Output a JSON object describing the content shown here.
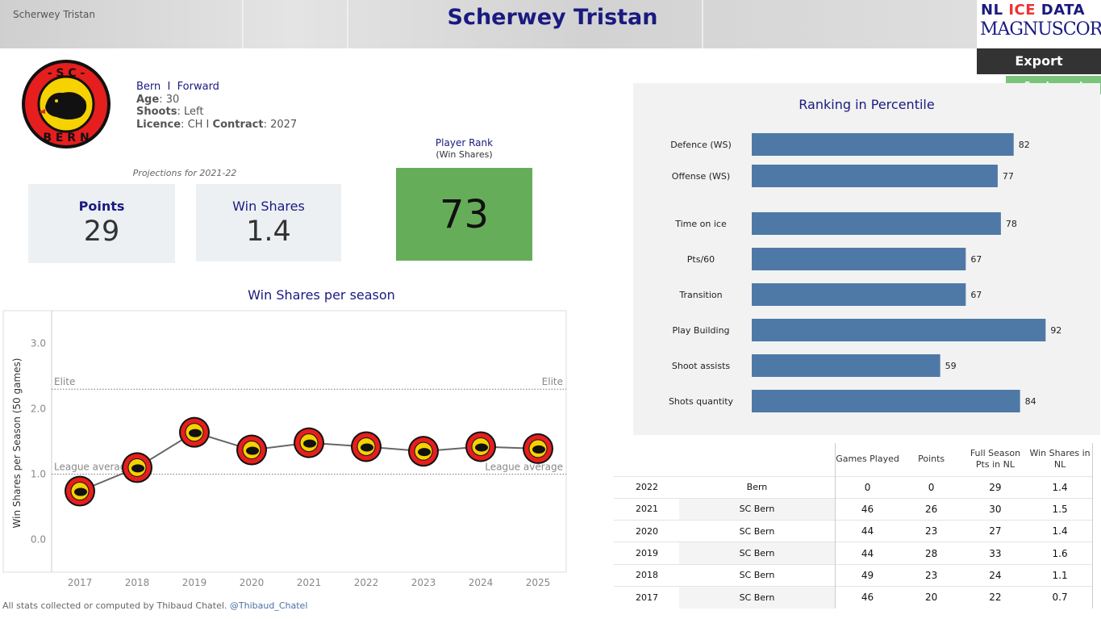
{
  "header": {
    "breadcrumb": "Scherwey Tristan",
    "title": "Scherwey Tristan",
    "logo_line1_a": "NL ",
    "logo_line1_b": "ICE",
    "logo_line1_c": " DATA",
    "logo_line2": "MAGNUSCORSI"
  },
  "actions": {
    "export_label": "Export",
    "legend_label": "See Legend"
  },
  "player": {
    "team": "Bern",
    "separator": "I",
    "position": "Forward",
    "age_label": "Age",
    "age": "30",
    "shoots_label": "Shoots",
    "shoots": "Left",
    "licence_label": "Licence",
    "licence": "CH",
    "contract_label": "Contract",
    "contract": "2027",
    "logo_text": "SC BERN"
  },
  "projections": {
    "label": "Projections for 2021-22",
    "points_label": "Points",
    "points_value": "29",
    "ws_label": "Win Shares",
    "ws_value": "1.4"
  },
  "player_rank": {
    "title": "Player Rank",
    "subtitle": "(Win Shares)",
    "value": "73",
    "color": "#66ad5a"
  },
  "win_shares_chart": {
    "title": "Win Shares per season",
    "footer_text": "All stats collected or computed by Thibaud Chatel.",
    "footer_handle": "@Thibaud_Chatel"
  },
  "ranking": {
    "title": "Ranking in Percentile"
  },
  "table": {
    "headers": {
      "gp": "Games Played",
      "points": "Points",
      "full_season": "Full Season Pts in NL",
      "ws": "Win Shares in NL"
    },
    "rows": [
      {
        "year": "2022",
        "team": "Bern",
        "gp": "0",
        "points": "0",
        "fs": "29",
        "ws": "1.4"
      },
      {
        "year": "2021",
        "team": "SC Bern",
        "gp": "46",
        "points": "26",
        "fs": "30",
        "ws": "1.5"
      },
      {
        "year": "2020",
        "team": "SC Bern",
        "gp": "44",
        "points": "23",
        "fs": "27",
        "ws": "1.4"
      },
      {
        "year": "2019",
        "team": "SC Bern",
        "gp": "44",
        "points": "28",
        "fs": "33",
        "ws": "1.6"
      },
      {
        "year": "2018",
        "team": "SC Bern",
        "gp": "49",
        "points": "23",
        "fs": "24",
        "ws": "1.1"
      },
      {
        "year": "2017",
        "team": "SC Bern",
        "gp": "46",
        "points": "20",
        "fs": "22",
        "ws": "0.7"
      }
    ]
  },
  "chart_data": [
    {
      "type": "line",
      "title": "Win Shares per season",
      "ylabel": "Win Shares per Season (50 games)",
      "xlabel": "",
      "x": [
        "2017",
        "2018",
        "2019",
        "2020",
        "2021",
        "2022",
        "2023",
        "2024",
        "2025"
      ],
      "values": [
        0.74,
        1.1,
        1.64,
        1.37,
        1.48,
        1.42,
        1.35,
        1.42,
        1.39
      ],
      "ylim": [
        -0.5,
        3.5
      ],
      "yticks": [
        0.0,
        1.0,
        2.0,
        3.0
      ],
      "reference_lines": [
        {
          "label": "Elite",
          "value": 2.3
        },
        {
          "label": "League average",
          "value": 1.0
        }
      ],
      "marker": "team-logo",
      "line_color": "#666666"
    },
    {
      "type": "bar",
      "orientation": "horizontal",
      "title": "Ranking in Percentile",
      "categories": [
        "Defence (WS)",
        "Offense (WS)",
        "Time on ice",
        "Pts/60",
        "Transition",
        "Play Building",
        "Shoot assists",
        "Shots quantity"
      ],
      "values": [
        82,
        77,
        78,
        67,
        67,
        92,
        59,
        84
      ],
      "xlim": [
        0,
        100
      ],
      "bar_color": "#4e79a7"
    }
  ]
}
